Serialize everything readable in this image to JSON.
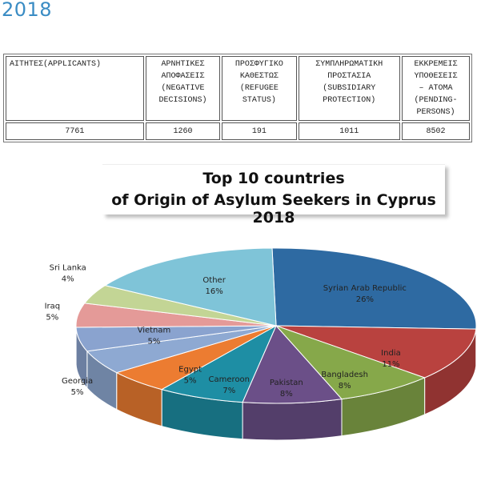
{
  "year_heading": "2018",
  "table": {
    "headers": [
      [
        "ΑΙΤΗΤΕΣ(APPLICANTS)"
      ],
      [
        "ΑΡΝΗΤΙΚΕΣ",
        "ΑΠΟΦΑΣΕΙΣ",
        "(NEGATIVE",
        "DECISIONS)"
      ],
      [
        "ΠΡΟΣΦΥΓΙΚΟ",
        "ΚΑΘΕΣΤΩΣ",
        "(REFUGEE",
        "STATUS)"
      ],
      [
        "ΣΥΜΠΛΗΡΩΜΑΤΙΚΗ",
        "ΠΡΟΣΤΑΣΙΑ",
        "(SUBSIDIARY",
        "PROTECTION)"
      ],
      [
        "ΕΚΚΡΕΜΕΙΣ",
        "ΥΠΟΘΕΣΕΙΣ",
        "– ΑΤΟΜΑ",
        "(PENDING-",
        "PERSONS)"
      ]
    ],
    "values": [
      "7761",
      "1260",
      "191",
      "1011",
      "8502"
    ]
  },
  "chart_data": {
    "type": "pie",
    "title": "Top 10 countries",
    "subtitle": "of Origin of Asylum Seekers in Cyprus 2018",
    "slices": [
      {
        "label": "Syrian Arab Republic",
        "value": 26,
        "display": "26%",
        "color": "#2e6aa2"
      },
      {
        "label": "India",
        "value": 11,
        "display": "11%",
        "color": "#b9423f"
      },
      {
        "label": "Bangladesh",
        "value": 8,
        "display": "8%",
        "color": "#86a84a"
      },
      {
        "label": "Pakistan",
        "value": 8,
        "display": "8%",
        "color": "#6b4f88"
      },
      {
        "label": "Cameroon",
        "value": 7,
        "display": "7%",
        "color": "#1e8ea4"
      },
      {
        "label": "Egypt",
        "value": 5,
        "display": "5%",
        "color": "#ec7c31"
      },
      {
        "label": "Georgia",
        "value": 5,
        "display": "5%",
        "color": "#8ea9d2"
      },
      {
        "label": "Vietnam",
        "value": 5,
        "display": "5%",
        "color": "#8aa3cf"
      },
      {
        "label": "Iraq",
        "value": 5,
        "display": "5%",
        "color": "#e49a98"
      },
      {
        "label": "Sri Lanka",
        "value": 4,
        "display": "4%",
        "color": "#c3d595"
      },
      {
        "label": "",
        "value": 0,
        "display": "",
        "color": "#b09ac7"
      },
      {
        "label": "Other",
        "value": 16,
        "display": "16%",
        "color": "#7fc4d8"
      }
    ]
  }
}
